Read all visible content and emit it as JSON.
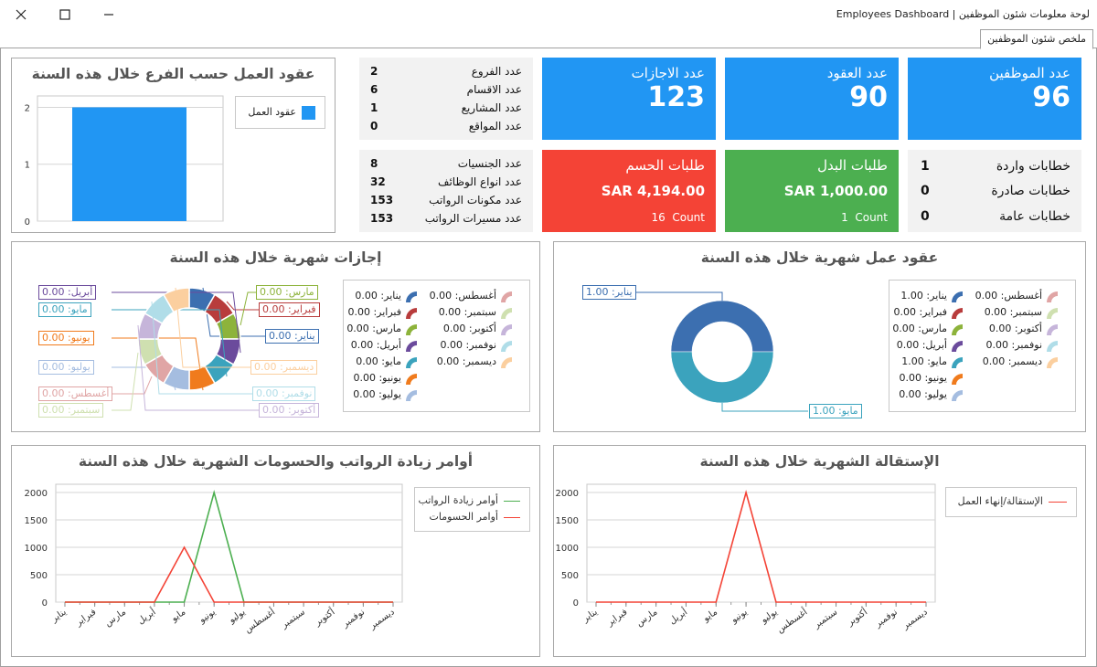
{
  "window": {
    "title": "Employees Dashboard | لوحة معلومات شئون الموظفين",
    "tab": "ملخص شئون الموظفين"
  },
  "colors": {
    "blue": "#2196f3",
    "green": "#4caf50",
    "red": "#f44336",
    "bar": "#2196f3",
    "line_green": "#4caf50",
    "line_red": "#f44336"
  },
  "tiles": {
    "employees": {
      "label": "عدد الموظفين",
      "value": "96"
    },
    "contracts": {
      "label": "عدد العقود",
      "value": "90"
    },
    "vacations": {
      "label": "عدد الاجازات",
      "value": "123"
    },
    "allowance": {
      "label": "طلبات البدل",
      "amount": "SAR 1,000.00",
      "count_label": "Count",
      "count": "1"
    },
    "deduction": {
      "label": "طلبات الحسم",
      "amount": "SAR 4,194.00",
      "count_label": "Count",
      "count": "16"
    }
  },
  "org_info": [
    {
      "label": "عدد الفروع",
      "value": "2"
    },
    {
      "label": "عدد الاقسام",
      "value": "6"
    },
    {
      "label": "عدد المشاريع",
      "value": "1"
    },
    {
      "label": "عدد المواقع",
      "value": "0"
    }
  ],
  "hr_info": [
    {
      "label": "عدد الجنسيات",
      "value": "8"
    },
    {
      "label": "عدد انواع الوظائف",
      "value": "32"
    },
    {
      "label": "عدد مكونات الرواتب",
      "value": "153"
    },
    {
      "label": "عدد مسيرات الرواتب",
      "value": "153"
    }
  ],
  "letters": [
    {
      "label": "خطابات واردة",
      "value": "1"
    },
    {
      "label": "خطابات صادرة",
      "value": "0"
    },
    {
      "label": "خطابات عامة",
      "value": "0"
    }
  ],
  "months": [
    "يناير",
    "فبراير",
    "مارس",
    "أبريل",
    "مايو",
    "يونيو",
    "يوليو",
    "أغسطس",
    "سبتمبر",
    "أكتوبر",
    "نوفمبر",
    "ديسمبر"
  ],
  "month_colors": [
    "#3c6fb0",
    "#b83c3c",
    "#8db33b",
    "#6b4b9c",
    "#3ba3bd",
    "#f07b1d",
    "#a5bde0",
    "#e0a5a5",
    "#cfe0b0",
    "#c6b5da",
    "#b0dde8",
    "#fbcf9f"
  ],
  "branch_chart": {
    "title": "عقود العمل حسب الفرع خلال هذه السنة",
    "legend": "عقود العمل",
    "ticks": [
      "0",
      "1",
      "2"
    ],
    "chart_data": {
      "type": "bar",
      "categories": [
        ""
      ],
      "series": [
        {
          "name": "عقود العمل",
          "values": [
            2
          ]
        }
      ],
      "ylim": [
        0,
        2.2
      ]
    }
  },
  "vacation_donut": {
    "title": "إجازات شهرية خلال هذه السنة",
    "values": [
      "0.00",
      "0.00",
      "0.00",
      "0.00",
      "0.00",
      "0.00",
      "0.00",
      "0.00",
      "0.00",
      "0.00",
      "0.00",
      "0.00"
    ],
    "chart_data": {
      "type": "pie",
      "categories": [
        "يناير",
        "فبراير",
        "مارس",
        "أبريل",
        "مايو",
        "يونيو",
        "يوليو",
        "أغسطس",
        "سبتمبر",
        "أكتوبر",
        "نوفمبر",
        "ديسمبر"
      ],
      "values": [
        0,
        0,
        0,
        0,
        0,
        0,
        0,
        0,
        0,
        0,
        0,
        0
      ]
    }
  },
  "contract_donut": {
    "title": "عقود عمل شهرية خلال هذه السنة",
    "values": [
      "1.00",
      "0.00",
      "0.00",
      "0.00",
      "1.00",
      "0.00",
      "0.00",
      "0.00",
      "0.00",
      "0.00",
      "0.00",
      "0.00"
    ],
    "chart_data": {
      "type": "pie",
      "categories": [
        "يناير",
        "فبراير",
        "مارس",
        "أبريل",
        "مايو",
        "يونيو",
        "يوليو",
        "أغسطس",
        "سبتمبر",
        "أكتوبر",
        "نوفمبر",
        "ديسمبر"
      ],
      "values": [
        1,
        0,
        0,
        0,
        1,
        0,
        0,
        0,
        0,
        0,
        0,
        0
      ]
    }
  },
  "salary_chart": {
    "title": "أوامر زيادة الرواتب والحسومات الشهرية خلال هذه السنة",
    "ticks": [
      "0",
      "500",
      "1000",
      "1500",
      "2000"
    ],
    "chart_data": {
      "type": "line",
      "categories": [
        "يناير",
        "فبراير",
        "مارس",
        "أبريل",
        "مايو",
        "يونيو",
        "يوليو",
        "أغسطس",
        "سبتمبر",
        "أكتوبر",
        "نوفمبر",
        "ديسمبر"
      ],
      "series": [
        {
          "name": "أوامر زيادة الرواتب",
          "values": [
            0,
            0,
            0,
            0,
            0,
            2000,
            0,
            0,
            0,
            0,
            0,
            0
          ]
        },
        {
          "name": "أوامر الحسومات",
          "values": [
            0,
            0,
            0,
            0,
            1000,
            0,
            0,
            0,
            0,
            0,
            0,
            0
          ]
        }
      ],
      "ylim": [
        0,
        2150
      ]
    }
  },
  "resign_chart": {
    "title": "الإستقالة الشهرية خلال هذه السنة",
    "ticks": [
      "0",
      "500",
      "1000",
      "1500",
      "2000"
    ],
    "chart_data": {
      "type": "line",
      "categories": [
        "يناير",
        "فبراير",
        "مارس",
        "أبريل",
        "مايو",
        "يونيو",
        "يوليو",
        "أغسطس",
        "سبتمبر",
        "أكتوبر",
        "نوفمبر",
        "ديسمبر"
      ],
      "series": [
        {
          "name": "الإستقالة/إنهاء العمل",
          "values": [
            0,
            0,
            0,
            0,
            0,
            2000,
            0,
            0,
            0,
            0,
            0,
            0
          ]
        }
      ],
      "ylim": [
        0,
        2150
      ]
    }
  }
}
